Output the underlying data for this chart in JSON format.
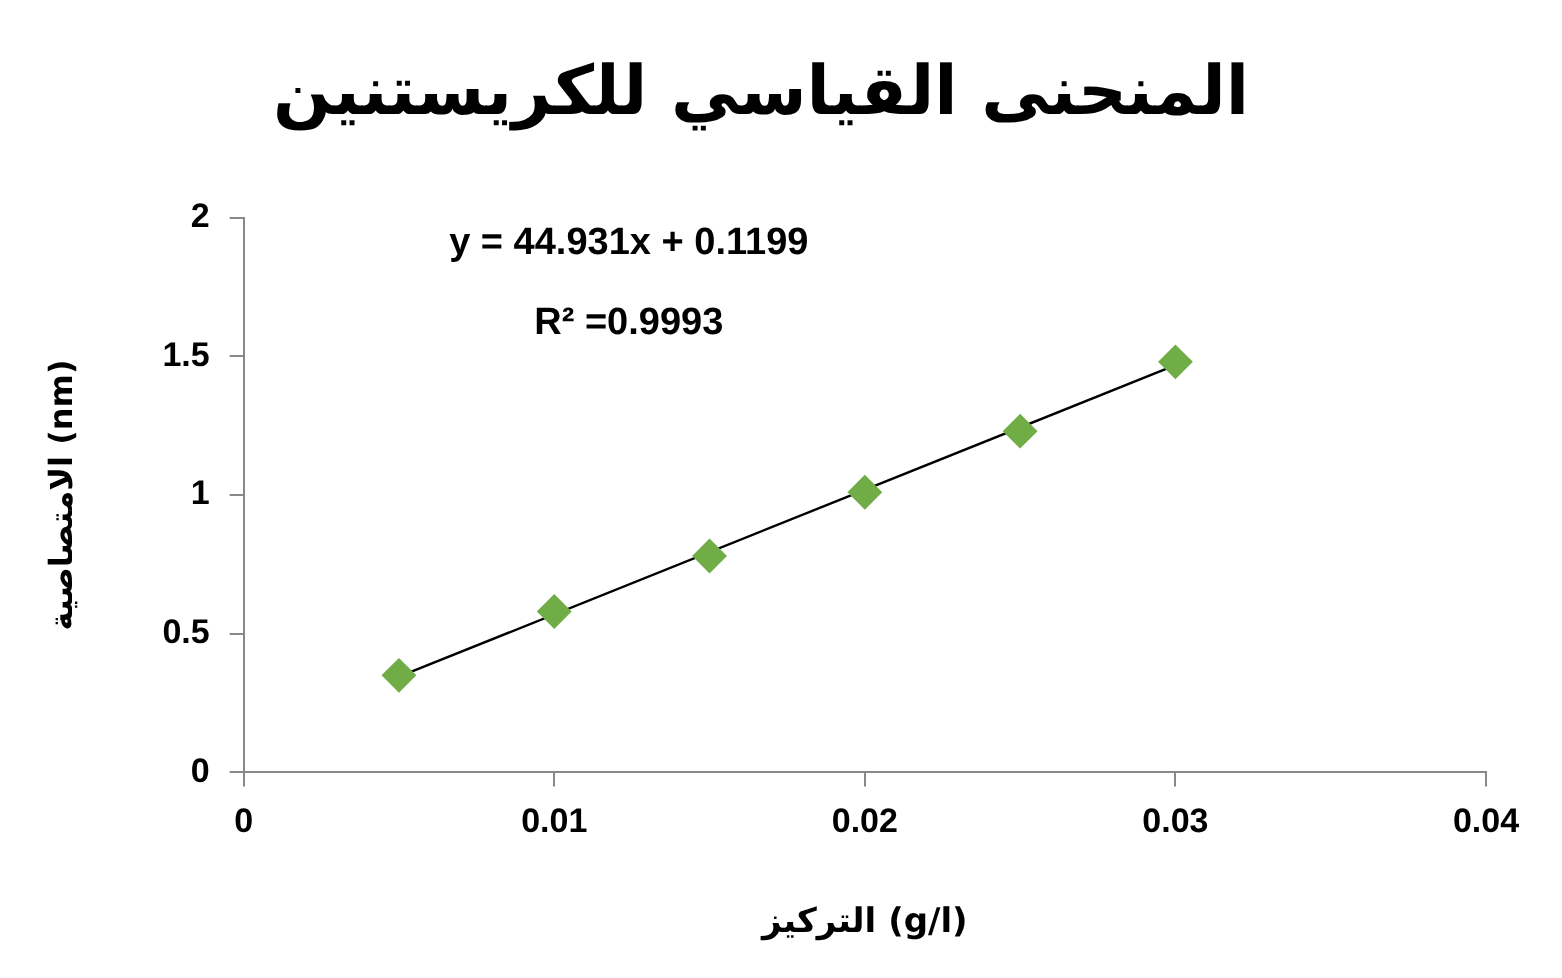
{
  "chart_data": {
    "type": "scatter",
    "title": "المنحنى القياسي للكريستنين",
    "xlabel": "التركيز (g/l)",
    "ylabel": "الامتصاصية (nm)",
    "x": [
      0.005,
      0.01,
      0.015,
      0.02,
      0.025,
      0.03
    ],
    "series": [
      {
        "type": "scatter",
        "color": "#70ad47",
        "marker": "diamond",
        "values": [
          0.35,
          0.58,
          0.78,
          1.01,
          1.23,
          1.48
        ]
      },
      {
        "type": "line",
        "color": "#000000",
        "marker": "none",
        "line_style": "solid",
        "x": [
          0.005,
          0.03
        ],
        "values": [
          0.345,
          1.468
        ]
      }
    ],
    "xlim": [
      0,
      0.04
    ],
    "xticks": [
      0,
      0.01,
      0.02,
      0.03,
      0.04
    ],
    "ylim": [
      0,
      2
    ],
    "yticks": [
      0,
      0.5,
      1,
      1.5,
      2
    ],
    "grid": false,
    "annotations": [
      "y = 44.931x + 0.1199",
      "R² =0.9993"
    ]
  }
}
